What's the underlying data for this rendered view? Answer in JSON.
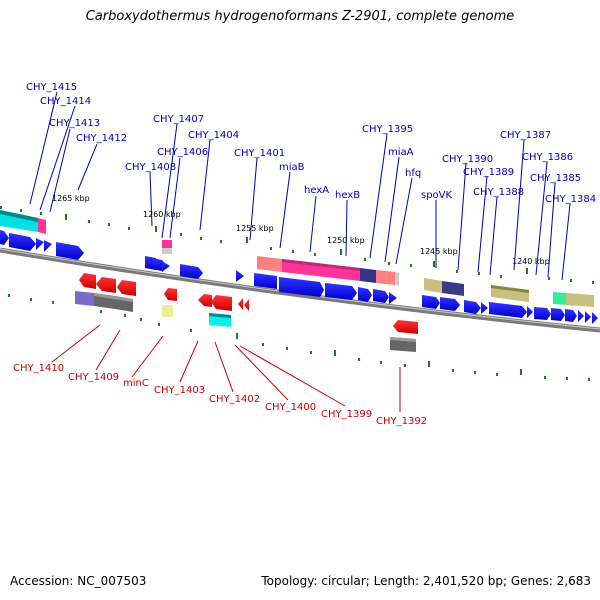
{
  "title": "Carboxydothermus hydrogenoformans Z-2901, complete genome",
  "footer": {
    "accession": "Accession: NC_007503",
    "topology": "Topology: circular; Length: 2,401,520 bp; Genes: 2,683"
  },
  "tick_labels": [
    "1265 kbp",
    "1260 kbp",
    "1255 kbp",
    "1250 kbp",
    "1245 kbp",
    "1240 kbp"
  ],
  "top_genes": [
    "CHY_1415",
    "CHY_1414",
    "CHY_1413",
    "CHY_1412",
    "CHY_1407",
    "CHY_1408",
    "CHY_1406",
    "CHY_1404",
    "CHY_1401",
    "miaB",
    "hexA",
    "hexB",
    "CHY_1395",
    "miaA",
    "hfq",
    "spoVK",
    "CHY_1390",
    "CHY_1389",
    "CHY_1388",
    "CHY_1387",
    "CHY_1386",
    "CHY_1385",
    "CHY_1384"
  ],
  "bottom_genes": [
    "CHY_1410",
    "CHY_1409",
    "minC",
    "CHY_1403",
    "CHY_1402",
    "CHY_1400",
    "CHY_1399",
    "CHY_1392"
  ],
  "colors": {
    "forward_cds": "#0000ee",
    "reverse_cds": "#ee0000",
    "top_label": "#0000b4",
    "bottom_label": "#c80000",
    "backbone": "#7a7a7a",
    "tick": "#1a7a1a"
  }
}
